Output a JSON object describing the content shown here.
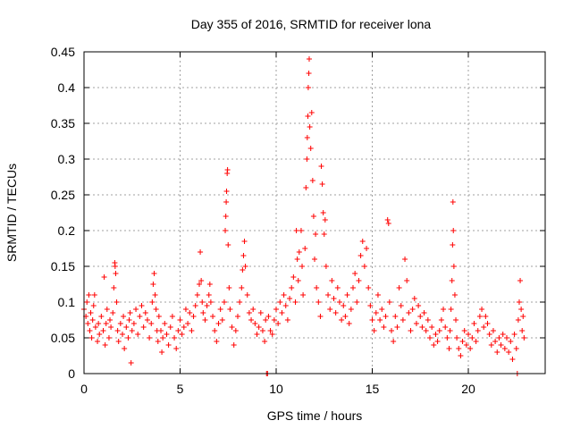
{
  "chart_data": {
    "type": "scatter",
    "title": "Day 355 of 2016, SRMTID for receiver lona",
    "xlabel": "GPS time / hours",
    "ylabel": "SRMTID / TECUs",
    "xlim": [
      0,
      24
    ],
    "ylim": [
      0,
      0.45
    ],
    "xticks": [
      0,
      5,
      10,
      15,
      20
    ],
    "yticks": [
      0,
      0.05,
      0.1,
      0.15,
      0.2,
      0.25,
      0.3,
      0.35,
      0.4,
      0.45
    ],
    "xtick_labels": [
      "0",
      "5",
      "10",
      "15",
      "20"
    ],
    "ytick_labels": [
      "0",
      "0.05",
      "0.1",
      "0.15",
      "0.2",
      "0.25",
      "0.3",
      "0.35",
      "0.4",
      "0.45"
    ],
    "grid": true,
    "marker": "+",
    "color": "#ff0000",
    "series": [
      {
        "name": "SRMTID",
        "points": [
          [
            0.0,
            0.09
          ],
          [
            0.1,
            0.08
          ],
          [
            0.15,
            0.1
          ],
          [
            0.2,
            0.07
          ],
          [
            0.25,
            0.11
          ],
          [
            0.3,
            0.06
          ],
          [
            0.35,
            0.085
          ],
          [
            0.4,
            0.05
          ],
          [
            0.45,
            0.075
          ],
          [
            0.5,
            0.095
          ],
          [
            0.55,
            0.11
          ],
          [
            0.6,
            0.065
          ],
          [
            0.7,
            0.045
          ],
          [
            0.75,
            0.07
          ],
          [
            0.8,
            0.055
          ],
          [
            0.9,
            0.08
          ],
          [
            1.0,
            0.06
          ],
          [
            1.05,
            0.135
          ],
          [
            1.1,
            0.04
          ],
          [
            1.15,
            0.07
          ],
          [
            1.2,
            0.09
          ],
          [
            1.3,
            0.05
          ],
          [
            1.35,
            0.075
          ],
          [
            1.4,
            0.065
          ],
          [
            1.5,
            0.085
          ],
          [
            1.55,
            0.12
          ],
          [
            1.6,
            0.155
          ],
          [
            1.62,
            0.15
          ],
          [
            1.65,
            0.14
          ],
          [
            1.7,
            0.1
          ],
          [
            1.75,
            0.06
          ],
          [
            1.8,
            0.045
          ],
          [
            1.9,
            0.07
          ],
          [
            2.0,
            0.055
          ],
          [
            2.05,
            0.08
          ],
          [
            2.1,
            0.035
          ],
          [
            2.2,
            0.065
          ],
          [
            2.3,
            0.05
          ],
          [
            2.35,
            0.075
          ],
          [
            2.4,
            0.085
          ],
          [
            2.45,
            0.015
          ],
          [
            2.5,
            0.06
          ],
          [
            2.6,
            0.07
          ],
          [
            2.7,
            0.09
          ],
          [
            2.8,
            0.055
          ],
          [
            2.9,
            0.08
          ],
          [
            3.0,
            0.095
          ],
          [
            3.1,
            0.065
          ],
          [
            3.2,
            0.085
          ],
          [
            3.3,
            0.075
          ],
          [
            3.4,
            0.05
          ],
          [
            3.5,
            0.07
          ],
          [
            3.55,
            0.1
          ],
          [
            3.6,
            0.125
          ],
          [
            3.65,
            0.14
          ],
          [
            3.7,
            0.11
          ],
          [
            3.75,
            0.09
          ],
          [
            3.8,
            0.06
          ],
          [
            3.85,
            0.045
          ],
          [
            3.9,
            0.08
          ],
          [
            4.0,
            0.06
          ],
          [
            4.05,
            0.03
          ],
          [
            4.1,
            0.05
          ],
          [
            4.2,
            0.07
          ],
          [
            4.3,
            0.055
          ],
          [
            4.4,
            0.04
          ],
          [
            4.5,
            0.065
          ],
          [
            4.6,
            0.08
          ],
          [
            4.7,
            0.05
          ],
          [
            4.8,
            0.035
          ],
          [
            4.9,
            0.06
          ],
          [
            5.0,
            0.075
          ],
          [
            5.1,
            0.055
          ],
          [
            5.2,
            0.065
          ],
          [
            5.3,
            0.09
          ],
          [
            5.4,
            0.07
          ],
          [
            5.5,
            0.085
          ],
          [
            5.6,
            0.06
          ],
          [
            5.7,
            0.08
          ],
          [
            5.8,
            0.095
          ],
          [
            5.9,
            0.11
          ],
          [
            6.0,
            0.125
          ],
          [
            6.05,
            0.17
          ],
          [
            6.1,
            0.13
          ],
          [
            6.15,
            0.1
          ],
          [
            6.2,
            0.085
          ],
          [
            6.3,
            0.075
          ],
          [
            6.4,
            0.095
          ],
          [
            6.5,
            0.11
          ],
          [
            6.55,
            0.125
          ],
          [
            6.6,
            0.1
          ],
          [
            6.7,
            0.08
          ],
          [
            6.8,
            0.06
          ],
          [
            6.9,
            0.045
          ],
          [
            7.0,
            0.07
          ],
          [
            7.1,
            0.09
          ],
          [
            7.2,
            0.075
          ],
          [
            7.3,
            0.1
          ],
          [
            7.35,
            0.2
          ],
          [
            7.38,
            0.22
          ],
          [
            7.4,
            0.24
          ],
          [
            7.42,
            0.255
          ],
          [
            7.45,
            0.28
          ],
          [
            7.47,
            0.285
          ],
          [
            7.5,
            0.18
          ],
          [
            7.55,
            0.12
          ],
          [
            7.6,
            0.09
          ],
          [
            7.7,
            0.065
          ],
          [
            7.8,
            0.04
          ],
          [
            7.9,
            0.06
          ],
          [
            8.0,
            0.08
          ],
          [
            8.1,
            0.1
          ],
          [
            8.2,
            0.12
          ],
          [
            8.25,
            0.145
          ],
          [
            8.3,
            0.165
          ],
          [
            8.35,
            0.185
          ],
          [
            8.4,
            0.15
          ],
          [
            8.5,
            0.11
          ],
          [
            8.6,
            0.085
          ],
          [
            8.7,
            0.075
          ],
          [
            8.8,
            0.09
          ],
          [
            8.9,
            0.07
          ],
          [
            9.0,
            0.055
          ],
          [
            9.1,
            0.065
          ],
          [
            9.2,
            0.085
          ],
          [
            9.3,
            0.06
          ],
          [
            9.4,
            0.045
          ],
          [
            9.45,
            0.075
          ],
          [
            9.5,
            0.0
          ],
          [
            9.55,
            0.0
          ],
          [
            9.6,
            0.08
          ],
          [
            9.7,
            0.06
          ],
          [
            9.8,
            0.055
          ],
          [
            9.9,
            0.075
          ],
          [
            10.0,
            0.09
          ],
          [
            10.1,
            0.07
          ],
          [
            10.2,
            0.1
          ],
          [
            10.3,
            0.085
          ],
          [
            10.4,
            0.11
          ],
          [
            10.5,
            0.095
          ],
          [
            10.6,
            0.075
          ],
          [
            10.7,
            0.105
          ],
          [
            10.8,
            0.12
          ],
          [
            10.9,
            0.135
          ],
          [
            11.0,
            0.1
          ],
          [
            11.05,
            0.2
          ],
          [
            11.1,
            0.16
          ],
          [
            11.15,
            0.13
          ],
          [
            11.2,
            0.17
          ],
          [
            11.3,
            0.2
          ],
          [
            11.35,
            0.15
          ],
          [
            11.4,
            0.11
          ],
          [
            11.5,
            0.175
          ],
          [
            11.55,
            0.26
          ],
          [
            11.6,
            0.3
          ],
          [
            11.62,
            0.33
          ],
          [
            11.65,
            0.36
          ],
          [
            11.67,
            0.4
          ],
          [
            11.7,
            0.42
          ],
          [
            11.72,
            0.44
          ],
          [
            11.75,
            0.345
          ],
          [
            11.8,
            0.315
          ],
          [
            11.85,
            0.365
          ],
          [
            11.9,
            0.27
          ],
          [
            11.95,
            0.22
          ],
          [
            12.0,
            0.16
          ],
          [
            12.05,
            0.195
          ],
          [
            12.1,
            0.12
          ],
          [
            12.2,
            0.1
          ],
          [
            12.3,
            0.08
          ],
          [
            12.35,
            0.29
          ],
          [
            12.4,
            0.265
          ],
          [
            12.45,
            0.225
          ],
          [
            12.5,
            0.195
          ],
          [
            12.55,
            0.215
          ],
          [
            12.6,
            0.15
          ],
          [
            12.7,
            0.11
          ],
          [
            12.8,
            0.09
          ],
          [
            12.9,
            0.13
          ],
          [
            13.0,
            0.105
          ],
          [
            13.1,
            0.085
          ],
          [
            13.2,
            0.12
          ],
          [
            13.3,
            0.1
          ],
          [
            13.4,
            0.075
          ],
          [
            13.5,
            0.095
          ],
          [
            13.6,
            0.08
          ],
          [
            13.7,
            0.11
          ],
          [
            13.8,
            0.07
          ],
          [
            13.9,
            0.09
          ],
          [
            14.0,
            0.12
          ],
          [
            14.1,
            0.14
          ],
          [
            14.2,
            0.1
          ],
          [
            14.3,
            0.13
          ],
          [
            14.4,
            0.165
          ],
          [
            14.5,
            0.185
          ],
          [
            14.6,
            0.15
          ],
          [
            14.7,
            0.175
          ],
          [
            14.8,
            0.12
          ],
          [
            14.9,
            0.095
          ],
          [
            15.0,
            0.075
          ],
          [
            15.1,
            0.06
          ],
          [
            15.2,
            0.085
          ],
          [
            15.3,
            0.11
          ],
          [
            15.4,
            0.075
          ],
          [
            15.5,
            0.09
          ],
          [
            15.6,
            0.065
          ],
          [
            15.7,
            0.08
          ],
          [
            15.8,
            0.215
          ],
          [
            15.85,
            0.21
          ],
          [
            15.9,
            0.1
          ],
          [
            16.0,
            0.06
          ],
          [
            16.1,
            0.045
          ],
          [
            16.2,
            0.08
          ],
          [
            16.3,
            0.065
          ],
          [
            16.4,
            0.12
          ],
          [
            16.5,
            0.095
          ],
          [
            16.6,
            0.075
          ],
          [
            16.7,
            0.16
          ],
          [
            16.8,
            0.13
          ],
          [
            16.9,
            0.085
          ],
          [
            17.0,
            0.06
          ],
          [
            17.1,
            0.09
          ],
          [
            17.2,
            0.105
          ],
          [
            17.3,
            0.07
          ],
          [
            17.4,
            0.095
          ],
          [
            17.5,
            0.08
          ],
          [
            17.6,
            0.065
          ],
          [
            17.7,
            0.085
          ],
          [
            17.8,
            0.06
          ],
          [
            17.9,
            0.075
          ],
          [
            18.0,
            0.05
          ],
          [
            18.1,
            0.065
          ],
          [
            18.2,
            0.04
          ],
          [
            18.3,
            0.055
          ],
          [
            18.4,
            0.045
          ],
          [
            18.5,
            0.06
          ],
          [
            18.6,
            0.075
          ],
          [
            18.7,
            0.09
          ],
          [
            18.8,
            0.065
          ],
          [
            18.9,
            0.05
          ],
          [
            19.0,
            0.035
          ],
          [
            19.05,
            0.06
          ],
          [
            19.1,
            0.09
          ],
          [
            19.15,
            0.13
          ],
          [
            19.18,
            0.18
          ],
          [
            19.2,
            0.24
          ],
          [
            19.22,
            0.2
          ],
          [
            19.25,
            0.15
          ],
          [
            19.3,
            0.11
          ],
          [
            19.35,
            0.075
          ],
          [
            19.4,
            0.05
          ],
          [
            19.5,
            0.035
          ],
          [
            19.6,
            0.025
          ],
          [
            19.7,
            0.045
          ],
          [
            19.8,
            0.06
          ],
          [
            19.9,
            0.04
          ],
          [
            20.0,
            0.055
          ],
          [
            20.1,
            0.035
          ],
          [
            20.2,
            0.05
          ],
          [
            20.3,
            0.07
          ],
          [
            20.4,
            0.045
          ],
          [
            20.5,
            0.06
          ],
          [
            20.6,
            0.08
          ],
          [
            20.7,
            0.09
          ],
          [
            20.8,
            0.065
          ],
          [
            20.9,
            0.08
          ],
          [
            21.0,
            0.07
          ],
          [
            21.1,
            0.055
          ],
          [
            21.2,
            0.04
          ],
          [
            21.3,
            0.06
          ],
          [
            21.4,
            0.045
          ],
          [
            21.5,
            0.03
          ],
          [
            21.6,
            0.05
          ],
          [
            21.7,
            0.04
          ],
          [
            21.8,
            0.055
          ],
          [
            21.9,
            0.035
          ],
          [
            22.0,
            0.05
          ],
          [
            22.1,
            0.03
          ],
          [
            22.2,
            0.045
          ],
          [
            22.3,
            0.02
          ],
          [
            22.4,
            0.055
          ],
          [
            22.5,
            0.035
          ],
          [
            22.55,
            0.0
          ],
          [
            22.6,
            0.075
          ],
          [
            22.65,
            0.1
          ],
          [
            22.7,
            0.13
          ],
          [
            22.75,
            0.09
          ],
          [
            22.8,
            0.06
          ],
          [
            22.85,
            0.08
          ],
          [
            22.9,
            0.05
          ]
        ]
      }
    ]
  }
}
